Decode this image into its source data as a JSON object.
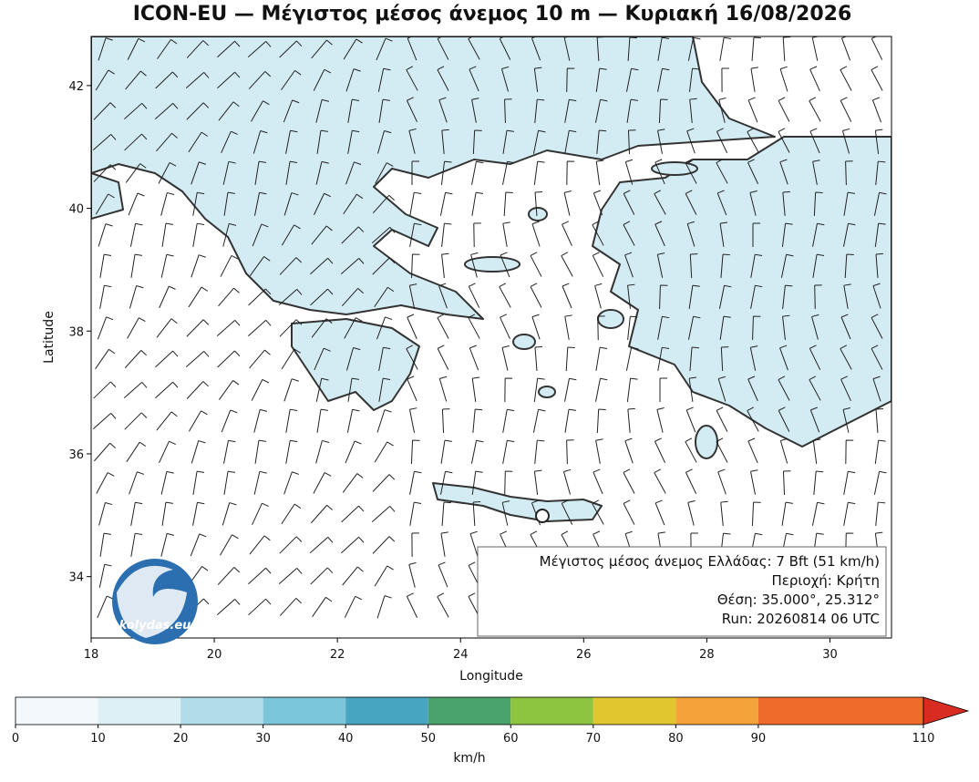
{
  "map": {
    "title": "ICON-EU — Μέγιστος μέσος άνεμος 10 m — Κυριακή 16/08/2026",
    "xlabel": "Longitude",
    "ylabel": "Latitude",
    "xlim": [
      18,
      31
    ],
    "ylim": [
      33,
      42.8
    ],
    "xticks": [
      18,
      20,
      22,
      24,
      26,
      28,
      30
    ],
    "yticks": [
      34,
      36,
      38,
      40,
      42
    ],
    "info_box": [
      "Μέγιστος μέσος άνεμος Ελλάδας: 7 Bft (51 km/h)",
      "Περιοχή: Κρήτη",
      "Θέση: 35.000°, 25.312°",
      "Run: 20260814 06 UTC"
    ],
    "logo": "kolydas.eu"
  },
  "colorbar": {
    "bounds": [
      0,
      10,
      20,
      30,
      40,
      50,
      60,
      70,
      80,
      90,
      110
    ],
    "colors": [
      "#f2f8fb",
      "#dcf0f5",
      "#b1dde8",
      "#7cc6da",
      "#48a5c2",
      "#48a46c",
      "#8dc540",
      "#e2c630",
      "#f3a33a",
      "#ee6b2c"
    ],
    "extend_color": "#d82b22",
    "label": "km/h"
  }
}
